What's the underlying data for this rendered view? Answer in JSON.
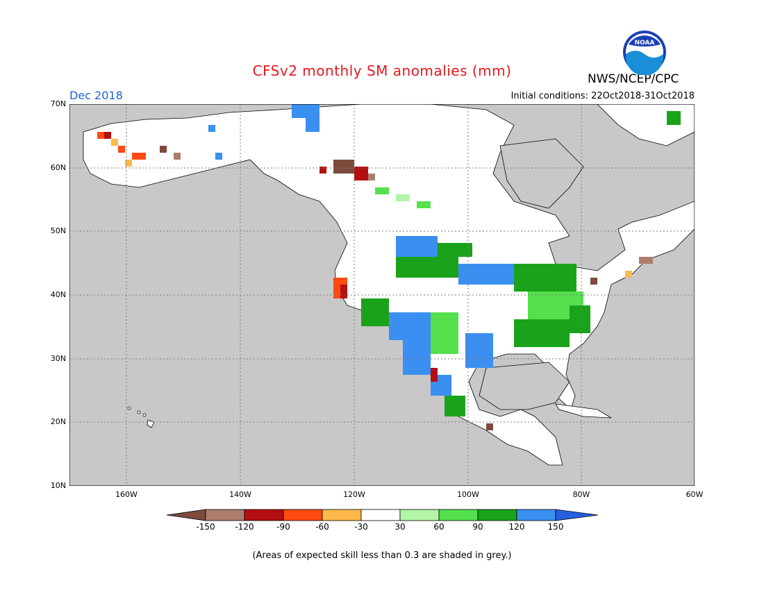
{
  "title": "CFSv2 monthly SM anomalies (mm)",
  "agency": "NWS/NCEP/CPC",
  "month": "Dec 2018",
  "initial_conditions": "Initial conditions: 22Oct2018-31Oct2018",
  "logo_text": "NOAA",
  "lat_labels": [
    "70N",
    "60N",
    "50N",
    "40N",
    "30N",
    "20N",
    "10N"
  ],
  "lon_labels": [
    "160W",
    "140W",
    "120W",
    "100W",
    "80W",
    "60W"
  ],
  "colorbar": {
    "labels": [
      "-150",
      "-120",
      "-90",
      "-60",
      "-30",
      "30",
      "60",
      "90",
      "120",
      "150"
    ],
    "colors": [
      "#7d4a3c",
      "#ac7d6c",
      "#b40f12",
      "#ff4a12",
      "#ffb84a",
      "#ffffff",
      "#b3f5a6",
      "#55e04d",
      "#1aa31a",
      "#3b8ff0",
      "#2560e0"
    ]
  },
  "note": "(Areas of expected skill less than 0.3 are shaded in grey.)",
  "colors": {
    "ocean": "#c8c8c8",
    "land": "#ffffff",
    "border": "#000000",
    "grid": "#7a7a7a",
    "title": "#e8181c",
    "month": "#1f5fd6"
  }
}
